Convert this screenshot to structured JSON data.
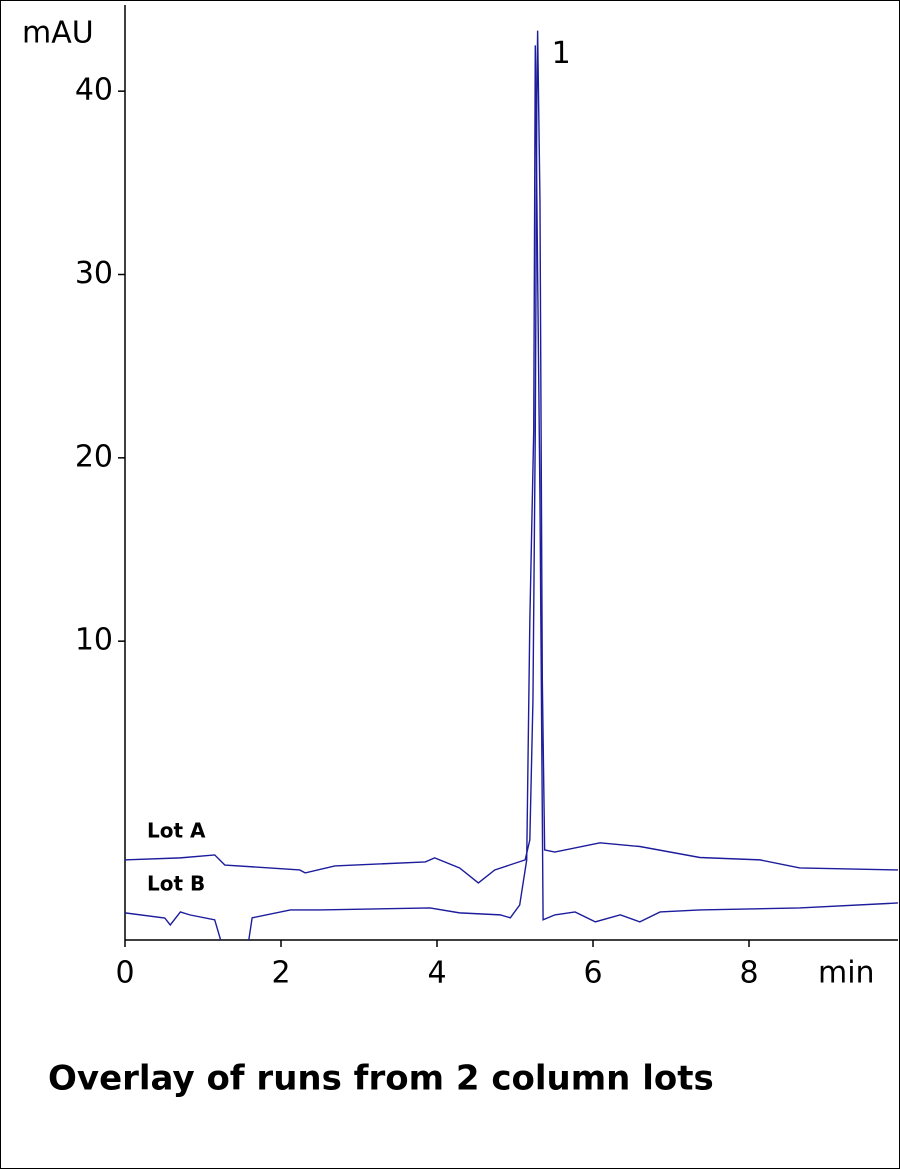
{
  "chart_data": {
    "type": "line",
    "title": "Overlay of runs from 2 column lots",
    "x_label": "min",
    "y_label": "mAU",
    "xlim": [
      0,
      9.91
    ],
    "ylim": [
      -6.3,
      44.7
    ],
    "xticks": [
      0,
      2,
      4,
      6,
      8
    ],
    "yticks": [
      10,
      20,
      30,
      40
    ],
    "annotations": [
      {
        "text": "1",
        "x": 5.29,
        "y": 43.3
      }
    ],
    "series": [
      {
        "name": "Lot A",
        "color": "#1c1c9c",
        "x": [
          0,
          0.71,
          1.15,
          1.28,
          2.24,
          2.31,
          2.69,
          3.85,
          3.97,
          4.29,
          4.53,
          4.74,
          5.13,
          5.19,
          5.23,
          5.26,
          5.28,
          5.29,
          5.32,
          5.35,
          5.38,
          5.51,
          6.09,
          6.6,
          7.37,
          8.14,
          8.65,
          9.91
        ],
        "values": [
          -1.93,
          -1.82,
          -1.66,
          -2.21,
          -2.48,
          -2.64,
          -2.26,
          -2.04,
          -1.82,
          -2.37,
          -3.19,
          -2.48,
          -1.93,
          -0.84,
          6.79,
          21.5,
          39.8,
          43.3,
          34.0,
          7.9,
          -1.39,
          -1.5,
          -1.0,
          -1.2,
          -1.8,
          -1.93,
          -2.37,
          -2.48
        ]
      },
      {
        "name": "Lot B",
        "color": "#1c1c9c",
        "x": [
          0,
          0.51,
          0.58,
          0.71,
          0.83,
          1.15,
          1.24,
          1.58,
          1.63,
          2.12,
          2.5,
          3.91,
          4.29,
          4.81,
          4.94,
          5.06,
          5.15,
          5.19,
          5.24,
          5.26,
          5.32,
          5.36,
          5.51,
          5.77,
          6.03,
          6.35,
          6.6,
          6.86,
          7.37,
          8.65,
          9.91
        ],
        "values": [
          -4.82,
          -5.1,
          -5.48,
          -4.77,
          -4.93,
          -5.2,
          -6.5,
          -6.5,
          -5.09,
          -4.66,
          -4.66,
          -4.55,
          -4.82,
          -4.93,
          -5.09,
          -4.39,
          -1.93,
          11.1,
          21.5,
          42.5,
          17.7,
          -5.2,
          -4.93,
          -4.77,
          -5.31,
          -4.93,
          -5.31,
          -4.77,
          -4.66,
          -4.55,
          -4.28
        ]
      }
    ]
  }
}
